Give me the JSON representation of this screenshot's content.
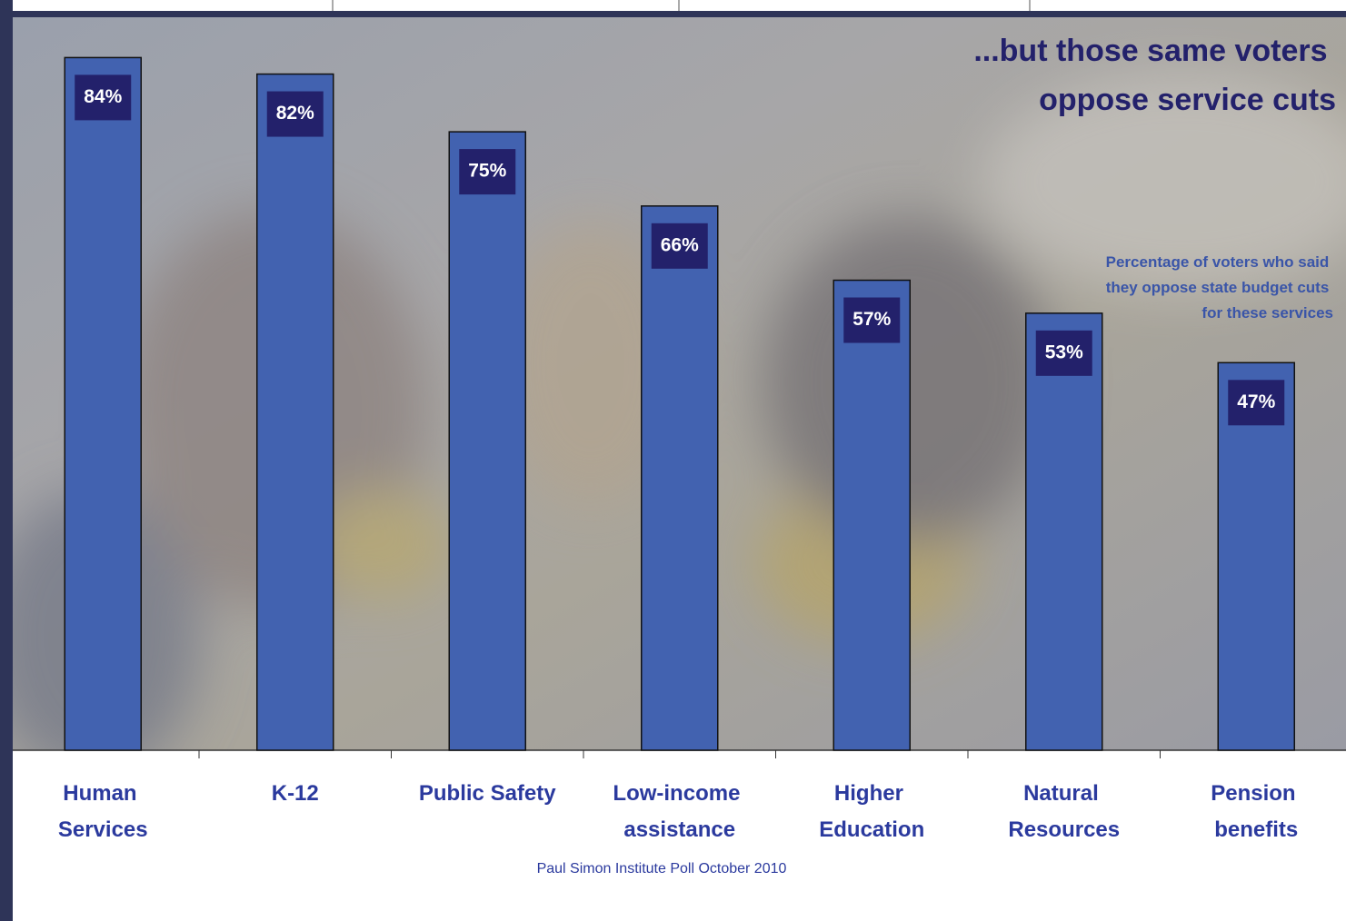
{
  "chart_data": {
    "type": "bar",
    "title": "...but those same voters oppose service cuts",
    "subtitle": "Percentage of voters who said they oppose state budget cuts for these services",
    "source": "Paul Simon Institute Poll October 2010",
    "categories": [
      "Human Services",
      "K-12",
      "Public Safety",
      "Low-income assistance",
      "Higher Education",
      "Natural Resources",
      "Pension benefits"
    ],
    "values": [
      84,
      82,
      75,
      66,
      57,
      53,
      47
    ],
    "value_labels": [
      "84%",
      "82%",
      "75%",
      "66%",
      "57%",
      "53%",
      "47%"
    ],
    "color": "#4262b0",
    "ylim": [
      0,
      89
    ]
  }
}
